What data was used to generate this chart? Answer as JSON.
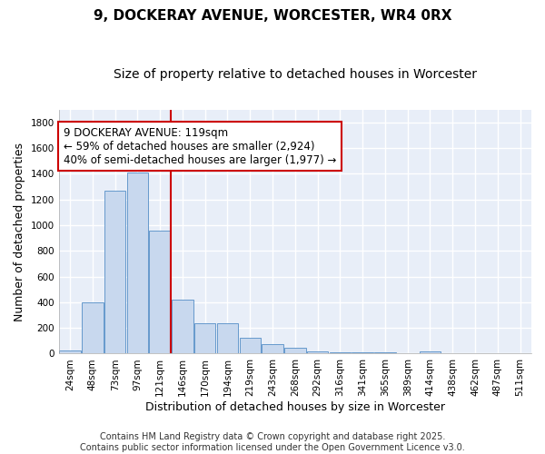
{
  "title": "9, DOCKERAY AVENUE, WORCESTER, WR4 0RX",
  "subtitle": "Size of property relative to detached houses in Worcester",
  "xlabel": "Distribution of detached houses by size in Worcester",
  "ylabel": "Number of detached properties",
  "categories": [
    "24sqm",
    "48sqm",
    "73sqm",
    "97sqm",
    "121sqm",
    "146sqm",
    "170sqm",
    "194sqm",
    "219sqm",
    "243sqm",
    "268sqm",
    "292sqm",
    "316sqm",
    "341sqm",
    "365sqm",
    "389sqm",
    "414sqm",
    "438sqm",
    "462sqm",
    "487sqm",
    "511sqm"
  ],
  "values": [
    25,
    400,
    1270,
    1410,
    960,
    420,
    235,
    235,
    125,
    75,
    45,
    15,
    10,
    10,
    10,
    5,
    15,
    5,
    5,
    5,
    5
  ],
  "bar_color": "#c8d8ee",
  "bar_edge_color": "#6699cc",
  "vline_color": "#cc0000",
  "vline_x_index": 4,
  "annotation_line1": "9 DOCKERAY AVENUE: 119sqm",
  "annotation_line2": "← 59% of detached houses are smaller (2,924)",
  "annotation_line3": "40% of semi-detached houses are larger (1,977) →",
  "annotation_box_color": "white",
  "annotation_box_edge": "#cc0000",
  "ylim": [
    0,
    1900
  ],
  "yticks": [
    0,
    200,
    400,
    600,
    800,
    1000,
    1200,
    1400,
    1600,
    1800
  ],
  "plot_bg_color": "#e8eef8",
  "fig_bg_color": "#ffffff",
  "grid_color": "#ffffff",
  "footer_line1": "Contains HM Land Registry data © Crown copyright and database right 2025.",
  "footer_line2": "Contains public sector information licensed under the Open Government Licence v3.0.",
  "title_fontsize": 11,
  "subtitle_fontsize": 10,
  "axis_label_fontsize": 9,
  "tick_fontsize": 7.5,
  "annotation_fontsize": 8.5,
  "footer_fontsize": 7
}
